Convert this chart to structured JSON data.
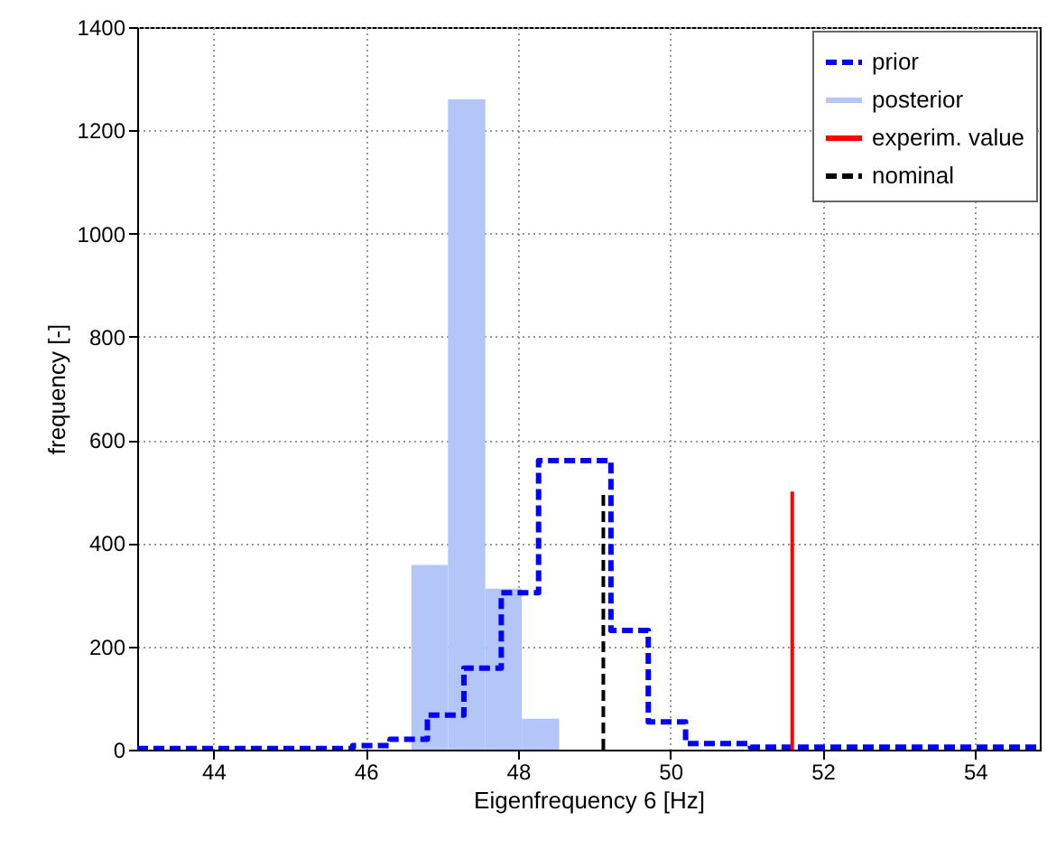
{
  "chart_data": {
    "type": "step",
    "xlabel": "Eigenfrequency 6 [Hz]",
    "ylabel": "frequency [-]",
    "xlim": [
      43,
      54.85
    ],
    "xticks": [
      44,
      46,
      48,
      50,
      52,
      54
    ],
    "ylim": [
      0,
      1400
    ],
    "yticks": [
      0,
      200,
      400,
      600,
      800,
      1000,
      1200,
      1400
    ],
    "grid": true,
    "legend": "top right",
    "series": [
      {
        "name": "prior",
        "color": "#0000ff",
        "line_style": "dashed",
        "x": [
          43,
          45.83,
          46.32,
          46.81,
          47.29,
          47.78,
          48.27,
          49.22,
          49.71,
          50.2,
          51.05,
          54.85
        ],
        "values": [
          2,
          8,
          20,
          67,
          158,
          304,
          560,
          231,
          54,
          12,
          5,
          5
        ]
      },
      {
        "name": "posterior",
        "type": "histogram",
        "color": "#b3c6f7",
        "bins": [
          46.6,
          47.08,
          47.57,
          48.05,
          48.54
        ],
        "values": [
          358,
          1260,
          312,
          60
        ]
      },
      {
        "name": "experim. value",
        "type": "line",
        "color": "#ff0000",
        "line_style": "solid",
        "x": [
          51.6,
          51.6
        ],
        "values": [
          0,
          500
        ]
      },
      {
        "name": "nominal",
        "type": "line",
        "color": "#000000",
        "line_style": "dashed",
        "x": [
          49.12,
          49.12
        ],
        "values": [
          0,
          500
        ]
      }
    ]
  }
}
